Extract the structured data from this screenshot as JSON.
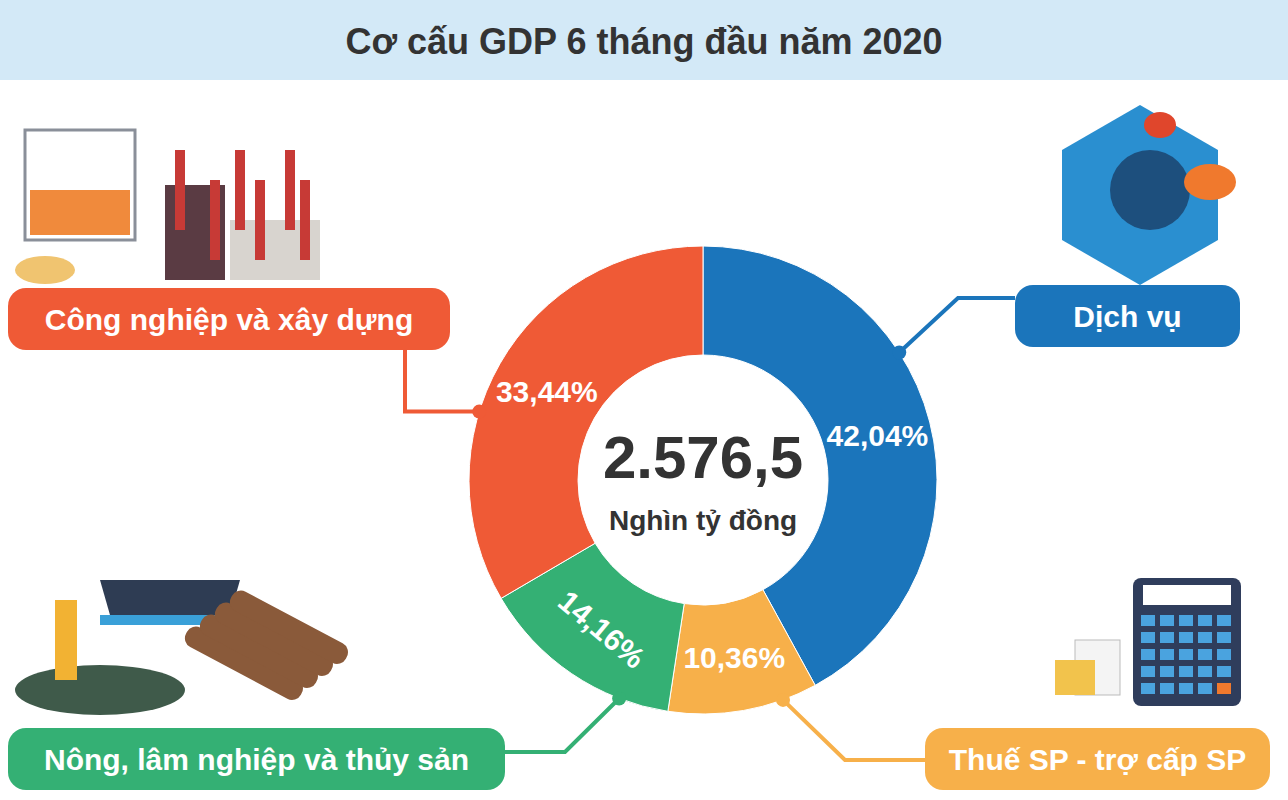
{
  "chart_data": {
    "type": "donut",
    "title": "Cơ cấu GDP 6 tháng đầu năm 2020",
    "total": {
      "value": 2576.5,
      "label": "2.576,5"
    },
    "total_unit": "Nghìn tỷ đồng",
    "categories": [
      "Dịch vụ",
      "Thuế SP - trợ cấp SP",
      "Nông, lâm nghiệp và thủy sản",
      "Công nghiệp và xây dựng"
    ],
    "values": [
      42.04,
      10.36,
      14.16,
      33.44
    ],
    "value_labels": [
      "42,04%",
      "10,36%",
      "14,16%",
      "33,44%"
    ],
    "colors": [
      "#1b75bb",
      "#f7b04a",
      "#34b074",
      "#ef5a36"
    ],
    "data_labels": true
  }
}
